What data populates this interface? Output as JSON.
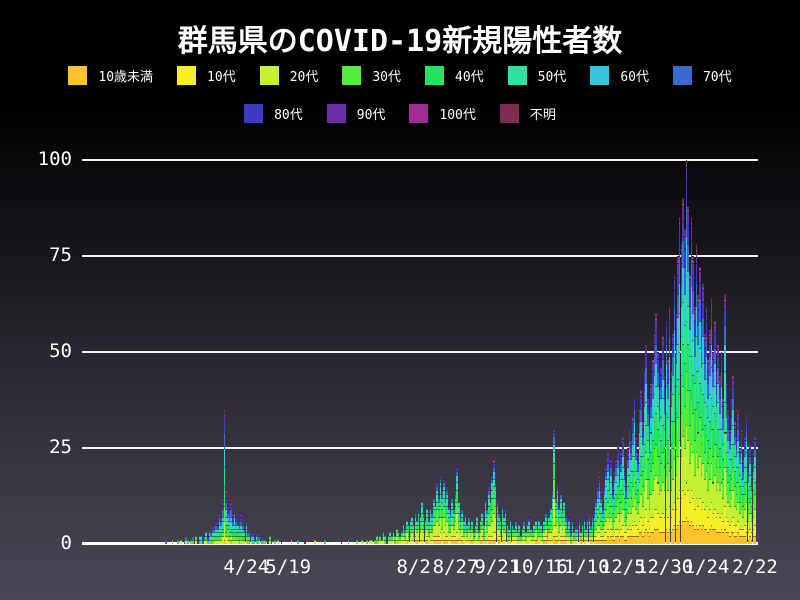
{
  "title": "群馬県のCOVID-19新規陽性者数",
  "chart_data": {
    "type": "stacked-bar",
    "title": "群馬県のCOVID-19新規陽性者数",
    "xlabel": "",
    "ylabel": "",
    "ylim": [
      0,
      100
    ],
    "yticks": [
      0,
      25,
      50,
      75,
      100
    ],
    "grid": "horizontal-white-lines",
    "legend_position": "top-two-rows",
    "background": {
      "top": "#000000",
      "bottom": "#4b4755"
    },
    "age_groups": [
      {
        "label": "10歳未満",
        "color": "#fcc32b"
      },
      {
        "label": "10代",
        "color": "#f6ee27"
      },
      {
        "label": "20代",
        "color": "#c4f133"
      },
      {
        "label": "30代",
        "color": "#52ed3d"
      },
      {
        "label": "40代",
        "color": "#25e362"
      },
      {
        "label": "50代",
        "color": "#2fe2a2"
      },
      {
        "label": "60代",
        "color": "#33c6dd"
      },
      {
        "label": "70代",
        "color": "#3a6ad0"
      },
      {
        "label": "80代",
        "color": "#3e3ac6"
      },
      {
        "label": "90代",
        "color": "#6c2da6"
      },
      {
        "label": "100代",
        "color": "#a02d96"
      },
      {
        "label": "不明",
        "color": "#7e2d50"
      }
    ],
    "axis_start_date": "3/7",
    "xticks": [
      {
        "label": "4/24",
        "offset": 48
      },
      {
        "label": "5/19",
        "offset": 73
      },
      {
        "label": "8/2",
        "offset": 148
      },
      {
        "label": "8/27",
        "offset": 173
      },
      {
        "label": "9/21",
        "offset": 198
      },
      {
        "label": "10/16",
        "offset": 223
      },
      {
        "label": "11/10",
        "offset": 248
      },
      {
        "label": "12/5",
        "offset": 273
      },
      {
        "label": "12/30",
        "offset": 298
      },
      {
        "label": "1/24",
        "offset": 323
      },
      {
        "label": "2/22",
        "offset": 352
      }
    ],
    "age_profiles": {
      "w1": [
        0.02,
        0.02,
        0.13,
        0.11,
        0.13,
        0.14,
        0.13,
        0.12,
        0.09,
        0.06,
        0.02,
        0.03
      ],
      "w2": [
        0.05,
        0.09,
        0.24,
        0.17,
        0.14,
        0.11,
        0.08,
        0.05,
        0.03,
        0.02,
        0.01,
        0.01
      ],
      "w3": [
        0.07,
        0.09,
        0.15,
        0.14,
        0.13,
        0.12,
        0.1,
        0.08,
        0.06,
        0.04,
        0.01,
        0.01
      ]
    },
    "months": [
      {
        "m": 3,
        "start_day": 7,
        "profile": "w1",
        "totals": [
          1,
          0,
          0,
          0,
          1,
          0,
          0,
          1,
          0,
          1,
          0,
          1,
          2,
          1,
          0,
          1,
          2,
          1,
          2,
          1,
          3,
          2,
          1,
          2,
          3
        ]
      },
      {
        "m": 4,
        "start_day": 1,
        "profile": "w1",
        "totals": [
          2,
          4,
          3,
          5,
          4,
          6,
          5,
          8,
          7,
          12,
          35,
          14,
          10,
          9,
          12,
          8,
          10,
          7,
          5,
          6,
          8,
          5,
          4,
          6,
          3,
          4,
          2,
          3,
          2,
          2
        ]
      },
      {
        "m": 5,
        "start_day": 1,
        "profile": "w1",
        "totals": [
          3,
          2,
          1,
          2,
          1,
          0,
          1,
          2,
          1,
          0,
          1,
          0,
          1,
          0,
          1,
          0,
          0,
          0,
          0,
          0,
          1,
          0,
          0,
          0,
          1,
          0,
          0,
          0,
          1,
          0,
          0
        ]
      },
      {
        "m": 6,
        "start_day": 1,
        "profile": "w1",
        "totals": [
          0,
          0,
          0,
          1,
          0,
          0,
          0,
          0,
          0,
          1,
          0,
          0,
          0,
          0,
          0,
          0,
          0,
          0,
          0,
          1,
          0,
          0,
          0,
          1,
          0,
          0,
          0,
          0,
          1,
          0
        ]
      },
      {
        "m": 7,
        "start_day": 1,
        "profile": "w2",
        "totals": [
          0,
          1,
          0,
          0,
          1,
          0,
          1,
          1,
          0,
          1,
          2,
          1,
          2,
          1,
          3,
          2,
          1,
          2,
          3,
          2,
          3,
          2,
          4,
          3,
          2,
          3,
          5,
          4,
          6,
          5,
          6
        ]
      },
      {
        "m": 8,
        "start_day": 1,
        "profile": "w2",
        "totals": [
          7,
          5,
          8,
          6,
          9,
          7,
          11,
          8,
          6,
          9,
          7,
          10,
          8,
          12,
          10,
          16,
          13,
          18,
          14,
          17,
          12,
          15,
          10,
          8,
          12,
          9,
          14,
          20,
          11,
          7,
          9
        ]
      },
      {
        "m": 9,
        "start_day": 1,
        "profile": "w2",
        "totals": [
          6,
          8,
          5,
          7,
          4,
          6,
          3,
          5,
          7,
          4,
          6,
          8,
          5,
          12,
          9,
          15,
          11,
          18,
          22,
          16,
          12,
          8,
          6,
          10,
          7,
          9,
          5,
          4,
          6,
          5
        ]
      },
      {
        "m": 10,
        "start_day": 1,
        "profile": "w2",
        "totals": [
          4,
          6,
          3,
          5,
          2,
          4,
          6,
          3,
          5,
          7,
          4,
          3,
          5,
          6,
          4,
          7,
          5,
          3,
          6,
          8,
          5,
          7,
          10,
          14,
          30,
          12,
          16,
          10,
          13,
          9,
          11
        ]
      },
      {
        "m": 11,
        "start_day": 1,
        "profile": "w3",
        "totals": [
          8,
          5,
          7,
          4,
          6,
          3,
          5,
          4,
          6,
          3,
          5,
          7,
          4,
          6,
          8,
          5,
          7,
          9,
          12,
          15,
          18,
          14,
          10,
          16,
          20,
          24,
          18,
          22,
          15,
          19
        ]
      },
      {
        "m": 12,
        "start_day": 1,
        "profile": "w3",
        "totals": [
          22,
          26,
          18,
          24,
          28,
          20,
          16,
          25,
          30,
          27,
          33,
          38,
          28,
          24,
          35,
          40,
          32,
          45,
          52,
          38,
          30,
          42,
          48,
          55,
          60,
          50,
          40,
          46,
          54,
          44,
          58
        ]
      },
      {
        "m": 1,
        "start_day": 1,
        "profile": "w3",
        "totals": [
          48,
          62,
          45,
          55,
          70,
          60,
          75,
          85,
          78,
          90,
          82,
          100,
          88,
          70,
          85,
          75,
          62,
          78,
          65,
          72,
          58,
          68,
          55,
          62,
          48,
          56,
          64,
          50,
          58,
          45,
          52
        ]
      },
      {
        "m": 2,
        "start_day": 1,
        "profile": "w3",
        "totals": [
          44,
          50,
          38,
          65,
          42,
          35,
          30,
          38,
          44,
          32,
          28,
          35,
          25,
          30,
          22,
          28,
          34,
          20,
          26,
          18,
          24,
          28
        ]
      }
    ]
  }
}
